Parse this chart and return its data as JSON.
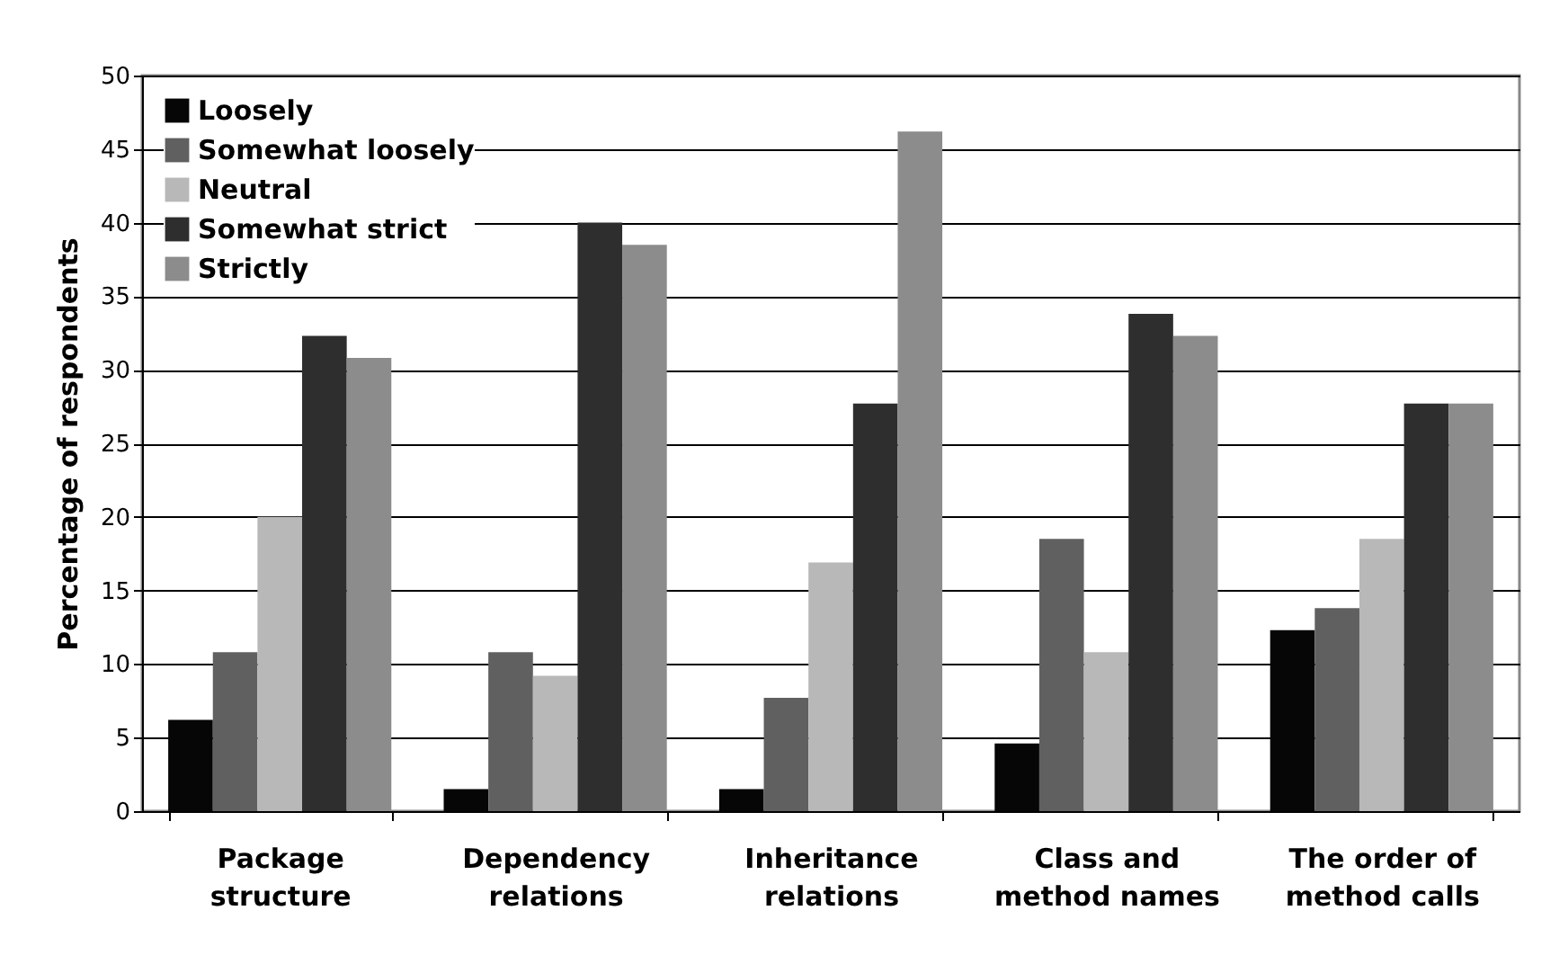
{
  "chart_data": {
    "type": "bar",
    "ylabel": "Percentage of respondents",
    "categories": [
      "Package structure",
      "Dependency relations",
      "Inheritance relations",
      "Class and method names",
      "The order of method calls"
    ],
    "series": [
      {
        "name": "Loosely",
        "color": "#060606",
        "values": [
          6.2,
          1.5,
          1.5,
          4.6,
          12.3
        ]
      },
      {
        "name": "Somewhat loosely",
        "color": "#606060",
        "values": [
          10.8,
          10.8,
          7.7,
          18.5,
          13.8
        ]
      },
      {
        "name": "Neutral",
        "color": "#b8b8b8",
        "values": [
          20,
          9.2,
          16.9,
          10.8,
          18.5
        ]
      },
      {
        "name": "Somewhat strict",
        "color": "#2e2e2e",
        "values": [
          32.3,
          40,
          27.7,
          33.8,
          27.7
        ]
      },
      {
        "name": "Strictly",
        "color": "#8c8c8c",
        "values": [
          30.8,
          38.5,
          46.2,
          32.3,
          27.7
        ]
      }
    ],
    "ylim": [
      0,
      50
    ],
    "yticks": [
      0,
      5,
      10,
      15,
      20,
      25,
      30,
      35,
      40,
      45,
      50
    ],
    "grid": "y",
    "legend": "top left"
  }
}
